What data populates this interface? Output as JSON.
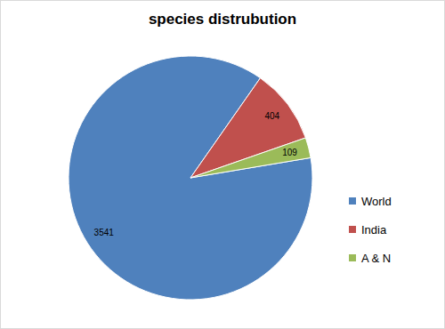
{
  "chart_data": {
    "type": "pie",
    "title": "species distrubution",
    "categories": [
      "World",
      "India",
      "A & N"
    ],
    "values": [
      3541,
      404,
      109
    ],
    "colors": [
      "#4f81bd",
      "#c0504d",
      "#9bbb59"
    ],
    "data_labels": true,
    "legend": "right"
  }
}
